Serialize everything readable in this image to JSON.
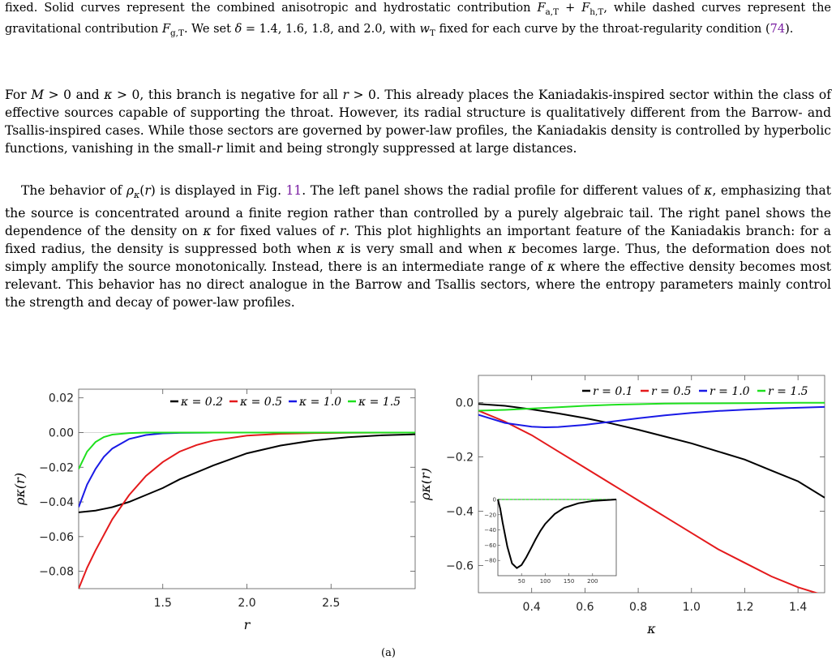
{
  "page": {
    "caption_tail": [
      {
        "t": "fixed. Solid curves represent the combined anisotropic and hydrostatic contribution "
      },
      {
        "t": "F",
        "i": true
      },
      {
        "t": "a,T",
        "sub": true
      },
      {
        "t": " + "
      },
      {
        "t": "F",
        "i": true
      },
      {
        "t": "h,T",
        "sub": true
      },
      {
        "t": ", while dashed curves represent the gravitational contribution "
      },
      {
        "t": "F",
        "i": true
      },
      {
        "t": "g,T",
        "sub": true
      },
      {
        "t": ". We set "
      },
      {
        "t": "δ",
        "i": true
      },
      {
        "t": " = 1.4, 1.6, 1.8, and 2.0, with "
      },
      {
        "t": "w",
        "i": true
      },
      {
        "t": "T",
        "sub": true
      },
      {
        "t": " fixed for each curve by the throat-regularity condition ("
      },
      {
        "t": "74",
        "cite": true
      },
      {
        "t": ")."
      }
    ],
    "paragraph1": [
      {
        "t": "For "
      },
      {
        "t": "M",
        "i": true
      },
      {
        "t": " > 0 and "
      },
      {
        "t": "κ",
        "i": true
      },
      {
        "t": " > 0, this branch is negative for all "
      },
      {
        "t": "r",
        "i": true
      },
      {
        "t": " > 0. This already places the Kaniadakis-inspired sector within the class of effective sources capable of supporting the throat. However, its radial structure is qualitatively different from the Barrow- and Tsallis-inspired cases. While those sectors are governed by power-law profiles, the Kaniadakis density is controlled by hyperbolic functions, vanishing in the small-"
      },
      {
        "t": "r",
        "i": true
      },
      {
        "t": " limit and being strongly suppressed at large distances."
      }
    ],
    "paragraph2": [
      {
        "t": "The behavior of "
      },
      {
        "t": "ρ",
        "i": true
      },
      {
        "t": "κ",
        "sub": true,
        "i": true
      },
      {
        "t": "("
      },
      {
        "t": "r",
        "i": true
      },
      {
        "t": ") is displayed in Fig. "
      },
      {
        "t": "11",
        "cite": true
      },
      {
        "t": ". The left panel shows the radial profile for different values of "
      },
      {
        "t": "κ",
        "i": true
      },
      {
        "t": ", emphasizing that the source is concentrated around a finite region rather than controlled by a purely algebraic tail. The right panel shows the dependence of the density on "
      },
      {
        "t": "κ",
        "i": true
      },
      {
        "t": " for fixed values of "
      },
      {
        "t": "r",
        "i": true
      },
      {
        "t": ". This plot highlights an important feature of the Kaniadakis branch: for a fixed radius, the density is suppressed both when "
      },
      {
        "t": "κ",
        "i": true
      },
      {
        "t": " is very small and when "
      },
      {
        "t": "κ",
        "i": true
      },
      {
        "t": " becomes large. Thus, the deformation does not simply amplify the source monotonically. Instead, there is an intermediate range of "
      },
      {
        "t": "κ",
        "i": true
      },
      {
        "t": " where the effective density becomes most relevant. This behavior has no direct analogue in the Barrow and Tsallis sectors, where the entropy parameters mainly control the strength and decay of power-law profiles."
      }
    ],
    "caption_fragment": "(a)"
  },
  "chart_data": [
    {
      "type": "line",
      "xlabel": "r",
      "ylabel": "ρκ(r)",
      "xlim": [
        1.0,
        3.0
      ],
      "ylim": [
        -0.09,
        0.025
      ],
      "xticks": [
        1.5,
        2.0,
        2.5
      ],
      "yticks": [
        0.02,
        0.0,
        -0.02,
        -0.04,
        -0.06,
        -0.08
      ],
      "legend": "top-right",
      "series": [
        {
          "name": "κ = 0.2",
          "color": "#000000",
          "x": [
            1.0,
            1.1,
            1.2,
            1.3,
            1.4,
            1.5,
            1.6,
            1.8,
            2.0,
            2.2,
            2.4,
            2.6,
            2.8,
            3.0
          ],
          "y": [
            -0.046,
            -0.045,
            -0.043,
            -0.04,
            -0.036,
            -0.032,
            -0.027,
            -0.019,
            -0.012,
            -0.0075,
            -0.0045,
            -0.0027,
            -0.0016,
            -0.001
          ]
        },
        {
          "name": "κ = 0.5",
          "color": "#e41a1c",
          "x": [
            1.0,
            1.05,
            1.1,
            1.2,
            1.3,
            1.4,
            1.5,
            1.6,
            1.7,
            1.8,
            2.0,
            2.2,
            2.4,
            2.6,
            3.0
          ],
          "y": [
            -0.09,
            -0.078,
            -0.068,
            -0.05,
            -0.036,
            -0.025,
            -0.017,
            -0.011,
            -0.0072,
            -0.0046,
            -0.0018,
            -0.0007,
            -0.0003,
            -0.0001,
            0.0
          ]
        },
        {
          "name": "κ = 1.0",
          "color": "#1a1ae6",
          "x": [
            1.0,
            1.05,
            1.1,
            1.15,
            1.2,
            1.3,
            1.4,
            1.5,
            1.6,
            1.8,
            2.0,
            3.0
          ],
          "y": [
            -0.043,
            -0.03,
            -0.021,
            -0.014,
            -0.0092,
            -0.0037,
            -0.0014,
            -0.0005,
            -0.0002,
            0.0,
            0.0,
            0.0
          ]
        },
        {
          "name": "κ = 1.5",
          "color": "#1ee01e",
          "x": [
            1.0,
            1.05,
            1.1,
            1.15,
            1.2,
            1.3,
            1.4,
            1.6,
            3.0
          ],
          "y": [
            -0.021,
            -0.011,
            -0.0055,
            -0.0026,
            -0.0012,
            -0.0003,
            0.0,
            0.0,
            0.0
          ]
        }
      ]
    },
    {
      "type": "line",
      "xlabel": "κ",
      "ylabel": "ρκ(r)",
      "xlim": [
        0.2,
        1.5
      ],
      "ylim": [
        -0.7,
        0.1
      ],
      "xticks": [
        0.4,
        0.6,
        0.8,
        1.0,
        1.2,
        1.4
      ],
      "yticks": [
        0.0,
        -0.2,
        -0.4,
        -0.6
      ],
      "legend": "top-right",
      "series": [
        {
          "name": "r = 0.1",
          "color": "#000000",
          "x": [
            0.2,
            0.3,
            0.4,
            0.5,
            0.6,
            0.7,
            0.8,
            0.9,
            1.0,
            1.1,
            1.2,
            1.3,
            1.4,
            1.5
          ],
          "y": [
            -0.005,
            -0.012,
            -0.025,
            -0.04,
            -0.057,
            -0.077,
            -0.1,
            -0.125,
            -0.15,
            -0.18,
            -0.21,
            -0.25,
            -0.29,
            -0.35
          ]
        },
        {
          "name": "r = 0.5",
          "color": "#e41a1c",
          "x": [
            0.2,
            0.3,
            0.4,
            0.5,
            0.6,
            0.7,
            0.8,
            0.9,
            1.0,
            1.1,
            1.2,
            1.3,
            1.4,
            1.5
          ],
          "y": [
            -0.03,
            -0.07,
            -0.12,
            -0.18,
            -0.24,
            -0.3,
            -0.36,
            -0.42,
            -0.48,
            -0.54,
            -0.59,
            -0.64,
            -0.68,
            -0.71
          ]
        },
        {
          "name": "r = 1.0",
          "color": "#1a1ae6",
          "x": [
            0.2,
            0.3,
            0.4,
            0.45,
            0.5,
            0.6,
            0.7,
            0.8,
            0.9,
            1.0,
            1.1,
            1.2,
            1.3,
            1.4,
            1.5
          ],
          "y": [
            -0.045,
            -0.075,
            -0.089,
            -0.091,
            -0.09,
            -0.082,
            -0.07,
            -0.058,
            -0.047,
            -0.038,
            -0.031,
            -0.026,
            -0.022,
            -0.019,
            -0.016
          ]
        },
        {
          "name": "r = 1.5",
          "color": "#1ee01e",
          "x": [
            0.2,
            0.3,
            0.4,
            0.5,
            0.6,
            0.7,
            0.8,
            0.9,
            1.0,
            1.2,
            1.4,
            1.5
          ],
          "y": [
            -0.03,
            -0.027,
            -0.022,
            -0.017,
            -0.012,
            -0.008,
            -0.006,
            -0.004,
            -0.003,
            -0.002,
            -0.001,
            -0.001
          ]
        }
      ],
      "inset": {
        "xlim": [
          0,
          250
        ],
        "ylim": [
          -100,
          0
        ],
        "xticks": [
          50,
          100,
          150,
          200
        ],
        "yticks": [
          0,
          -20,
          -40,
          -60,
          -80
        ],
        "series": [
          {
            "color": "#000000",
            "x": [
              0,
              5,
              10,
              20,
              30,
              40,
              50,
              60,
              70,
              80,
              90,
              100,
              120,
              140,
              170,
              200,
              250
            ],
            "y": [
              0,
              -12,
              -30,
              -62,
              -84,
              -90,
              -86,
              -76,
              -64,
              -52,
              -41,
              -32,
              -19,
              -11,
              -5,
              -2,
              0
            ]
          }
        ]
      }
    }
  ]
}
